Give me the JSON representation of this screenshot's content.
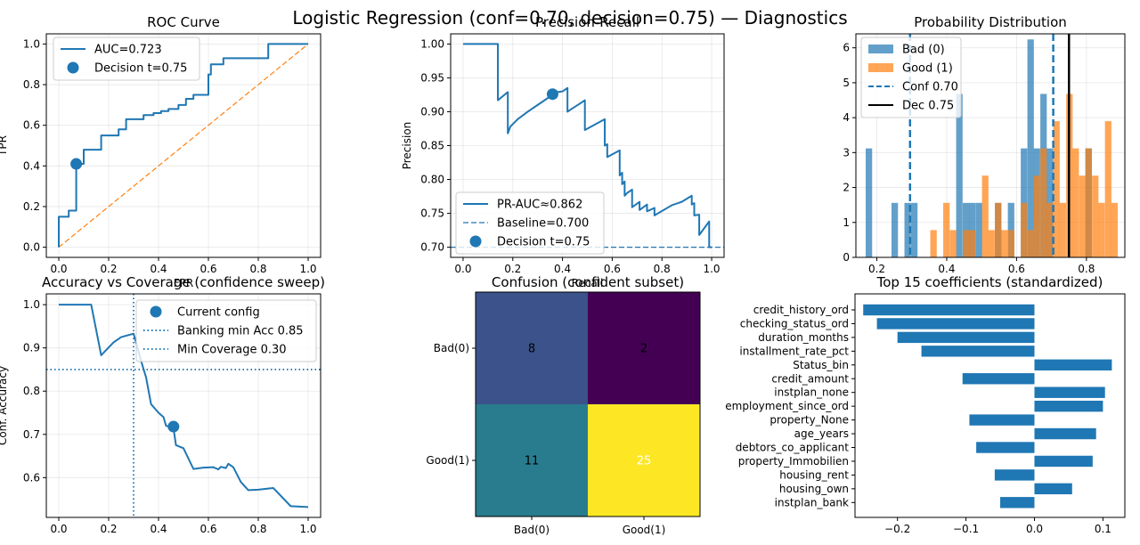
{
  "figure": {
    "suptitle": "Logistic Regression (conf=0.70, decision=0.75) — Diagnostics"
  },
  "chart_data": [
    {
      "id": "roc",
      "type": "line",
      "title": "ROC Curve",
      "xlabel": "FPR",
      "ylabel": "TPR",
      "xlim": [
        -0.05,
        1.05
      ],
      "ylim": [
        -0.05,
        1.05
      ],
      "xticks": [
        "0.0",
        "0.2",
        "0.4",
        "0.6",
        "0.8",
        "1.0"
      ],
      "yticks": [
        "0.0",
        "0.2",
        "0.4",
        "0.6",
        "0.8",
        "1.0"
      ],
      "grid": true,
      "legend_position": "upper left",
      "series": [
        {
          "name": "AUC=0.723",
          "color": "#1f77b4",
          "x": [
            0,
            0,
            0.04,
            0.04,
            0.07,
            0.07,
            0.1,
            0.1,
            0.17,
            0.17,
            0.24,
            0.24,
            0.27,
            0.27,
            0.34,
            0.34,
            0.38,
            0.38,
            0.41,
            0.41,
            0.44,
            0.44,
            0.48,
            0.48,
            0.51,
            0.51,
            0.54,
            0.54,
            0.6,
            0.6,
            0.61,
            0.61,
            0.66,
            0.66,
            0.84,
            0.84,
            1.0
          ],
          "y": [
            0,
            0.15,
            0.15,
            0.18,
            0.18,
            0.41,
            0.41,
            0.48,
            0.48,
            0.55,
            0.55,
            0.58,
            0.58,
            0.63,
            0.63,
            0.65,
            0.65,
            0.66,
            0.66,
            0.67,
            0.67,
            0.68,
            0.68,
            0.7,
            0.7,
            0.73,
            0.73,
            0.75,
            0.75,
            0.85,
            0.85,
            0.9,
            0.9,
            0.93,
            0.93,
            1.0,
            1.0
          ]
        },
        {
          "name": "",
          "color": "#ff7f0e",
          "style": "dashed",
          "x": [
            0,
            1
          ],
          "y": [
            0,
            1
          ]
        }
      ],
      "points": [
        {
          "name": "Decision t=0.75",
          "x": 0.07,
          "y": 0.41,
          "color": "#1f77b4"
        }
      ]
    },
    {
      "id": "pr",
      "type": "line",
      "title": "Precision-Recall",
      "xlabel": "Recall",
      "ylabel": "Precision",
      "xlim": [
        -0.05,
        1.05
      ],
      "ylim": [
        0.685,
        1.015
      ],
      "xticks": [
        "0.0",
        "0.2",
        "0.4",
        "0.6",
        "0.8",
        "1.0"
      ],
      "yticks": [
        "0.70",
        "0.75",
        "0.80",
        "0.85",
        "0.90",
        "0.95",
        "1.00"
      ],
      "grid": true,
      "legend_position": "lower left",
      "series": [
        {
          "name": "PR-AUC≈0.862",
          "color": "#1f77b4",
          "x": [
            0,
            0.14,
            0.14,
            0.18,
            0.18,
            0.19,
            0.22,
            0.26,
            0.3,
            0.34,
            0.36,
            0.38,
            0.4,
            0.42,
            0.42,
            0.44,
            0.47,
            0.49,
            0.49,
            0.55,
            0.57,
            0.57,
            0.58,
            0.58,
            0.61,
            0.63,
            0.63,
            0.64,
            0.64,
            0.65,
            0.65,
            0.66,
            0.68,
            0.68,
            0.71,
            0.71,
            0.74,
            0.74,
            0.77,
            0.77,
            0.84,
            0.88,
            0.92,
            0.92,
            0.93,
            0.93,
            0.95,
            0.95,
            0.99,
            0.99,
            1.0
          ],
          "y": [
            1.0,
            1.0,
            0.917,
            0.929,
            0.868,
            0.878,
            0.889,
            0.9,
            0.91,
            0.92,
            0.925,
            0.929,
            0.93,
            0.935,
            0.9,
            0.905,
            0.912,
            0.917,
            0.873,
            0.885,
            0.889,
            0.85,
            0.852,
            0.833,
            0.839,
            0.843,
            0.806,
            0.81,
            0.793,
            0.797,
            0.776,
            0.78,
            0.785,
            0.759,
            0.767,
            0.755,
            0.763,
            0.753,
            0.758,
            0.747,
            0.762,
            0.767,
            0.776,
            0.763,
            0.765,
            0.747,
            0.748,
            0.718,
            0.738,
            0.7,
            0.7
          ]
        },
        {
          "name": "Baseline=0.700",
          "color": "#1f77b4",
          "style": "dashed",
          "x": [
            -0.05,
            1.05
          ],
          "y": [
            0.7,
            0.7
          ]
        }
      ],
      "points": [
        {
          "name": "Decision t=0.75",
          "x": 0.36,
          "y": 0.926,
          "color": "#1f77b4"
        }
      ]
    },
    {
      "id": "prob",
      "type": "bar",
      "title": "Probability Distribution",
      "xlim": [
        0.14,
        0.91
      ],
      "ylim": [
        0,
        6.4
      ],
      "xticks": [
        "0.2",
        "0.4",
        "0.6",
        "0.8"
      ],
      "yticks": [
        "0",
        "1",
        "2",
        "3",
        "4",
        "5",
        "6"
      ],
      "grid": true,
      "legend_position": "upper left",
      "bin_width": 0.0185,
      "series": [
        {
          "name": "Bad (0)",
          "color": "#1f77b4",
          "bins": [
            [
              0.168,
              3.12
            ],
            [
              0.242,
              1.56
            ],
            [
              0.279,
              1.56
            ],
            [
              0.298,
              1.56
            ],
            [
              0.427,
              4.68
            ],
            [
              0.446,
              1.56
            ],
            [
              0.464,
              1.56
            ],
            [
              0.483,
              1.56
            ],
            [
              0.538,
              1.56
            ],
            [
              0.575,
              1.56
            ],
            [
              0.612,
              3.12
            ],
            [
              0.631,
              6.24
            ],
            [
              0.649,
              3.12
            ],
            [
              0.668,
              4.68
            ],
            [
              0.686,
              3.12
            ],
            [
              0.797,
              3.12
            ]
          ]
        },
        {
          "name": "Good (1)",
          "color": "#ff7f0e",
          "bins": [
            [
              0.353,
              0.78
            ],
            [
              0.39,
              1.56
            ],
            [
              0.409,
              0.78
            ],
            [
              0.446,
              0.78
            ],
            [
              0.464,
              0.78
            ],
            [
              0.501,
              2.34
            ],
            [
              0.519,
              0.78
            ],
            [
              0.538,
              1.56
            ],
            [
              0.556,
              0.78
            ],
            [
              0.575,
              0.78
            ],
            [
              0.612,
              1.56
            ],
            [
              0.631,
              0.78
            ],
            [
              0.649,
              2.34
            ],
            [
              0.668,
              3.12
            ],
            [
              0.686,
              1.56
            ],
            [
              0.705,
              3.9
            ],
            [
              0.723,
              1.56
            ],
            [
              0.742,
              4.68
            ],
            [
              0.76,
              3.12
            ],
            [
              0.779,
              2.34
            ],
            [
              0.797,
              3.12
            ],
            [
              0.816,
              2.34
            ],
            [
              0.834,
              1.56
            ],
            [
              0.853,
              3.9
            ],
            [
              0.871,
              1.56
            ]
          ]
        }
      ],
      "vlines": [
        {
          "name": "Conf 0.70",
          "x": 0.295,
          "color": "#1f77b4",
          "style": "dashed"
        },
        {
          "name": "",
          "x": 0.705,
          "color": "#1f77b4",
          "style": "dashed"
        },
        {
          "name": "Dec 0.75",
          "x": 0.75,
          "color": "#000000",
          "style": "solid"
        }
      ]
    },
    {
      "id": "acccov",
      "type": "line",
      "title": "Accuracy vs Coverage (confidence sweep)",
      "xlabel": "",
      "ylabel": "Conf. Accuracy",
      "xlim": [
        -0.05,
        1.05
      ],
      "ylim": [
        0.508,
        1.025
      ],
      "xticks": [
        "0.0",
        "0.2",
        "0.4",
        "0.6",
        "0.8",
        "1.0"
      ],
      "yticks": [
        "0.6",
        "0.7",
        "0.8",
        "0.9",
        "1.0"
      ],
      "grid": true,
      "legend_position": "upper right",
      "series": [
        {
          "name": "",
          "color": "#1f77b4",
          "x": [
            0,
            0.13,
            0.17,
            0.22,
            0.25,
            0.3,
            0.33,
            0.35,
            0.37,
            0.4,
            0.42,
            0.43,
            0.46,
            0.47,
            0.5,
            0.54,
            0.58,
            0.62,
            0.64,
            0.65,
            0.67,
            0.68,
            0.7,
            0.73,
            0.76,
            0.8,
            0.86,
            0.93,
            1.0
          ],
          "y": [
            1.0,
            1.0,
            0.883,
            0.913,
            0.925,
            0.933,
            0.87,
            0.832,
            0.77,
            0.75,
            0.74,
            0.72,
            0.714,
            0.675,
            0.668,
            0.62,
            0.623,
            0.624,
            0.619,
            0.625,
            0.622,
            0.632,
            0.624,
            0.59,
            0.571,
            0.572,
            0.576,
            0.534,
            0.532
          ]
        }
      ],
      "points": [
        {
          "name": "Current config",
          "x": 0.46,
          "y": 0.718,
          "color": "#1f77b4"
        }
      ],
      "hlines": [
        {
          "name": "Banking min Acc 0.85",
          "y": 0.85,
          "color": "#1f77b4",
          "style": "dotted"
        }
      ],
      "vlines": [
        {
          "name": "Min Coverage 0.30",
          "x": 0.3,
          "color": "#1f77b4",
          "style": "dotted"
        }
      ]
    },
    {
      "id": "confusion",
      "type": "heatmap",
      "title": "Confusion (confident subset)",
      "row_labels": [
        "Bad(0)",
        "Good(1)"
      ],
      "col_labels": [
        "Bad(0)",
        "Good(1)"
      ],
      "matrix": [
        [
          8,
          2
        ],
        [
          11,
          25
        ]
      ],
      "cell_colors": [
        [
          "#3b528b",
          "#440154"
        ],
        [
          "#287c8e",
          "#fde725"
        ]
      ],
      "text_colors": [
        [
          "#000000",
          "#000000"
        ],
        [
          "#000000",
          "#ffffff"
        ]
      ]
    },
    {
      "id": "coef",
      "type": "bar",
      "orientation": "horizontal",
      "title": "Top 15 coefficients (standardized)",
      "xlim": [
        -0.262,
        0.132
      ],
      "xticks": [
        -0.2,
        -0.1,
        0.0,
        0.1
      ],
      "xtick_labels": [
        "−0.2",
        "−0.1",
        "0.0",
        "0.1"
      ],
      "color": "#1f77b4",
      "categories": [
        "credit_history_ord",
        "checking_status_ord",
        "duration_months",
        "installment_rate_pct",
        "Status_bin",
        "credit_amount",
        "instplan_none",
        "employment_since_ord",
        "property_None",
        "age_years",
        "debtors_co_applicant",
        "property_Immobilien",
        "housing_rent",
        "housing_own",
        "instplan_bank"
      ],
      "values": [
        -0.25,
        -0.23,
        -0.2,
        -0.165,
        0.113,
        -0.105,
        0.103,
        0.1,
        -0.095,
        0.09,
        -0.085,
        0.085,
        -0.058,
        0.055,
        -0.05
      ]
    }
  ]
}
